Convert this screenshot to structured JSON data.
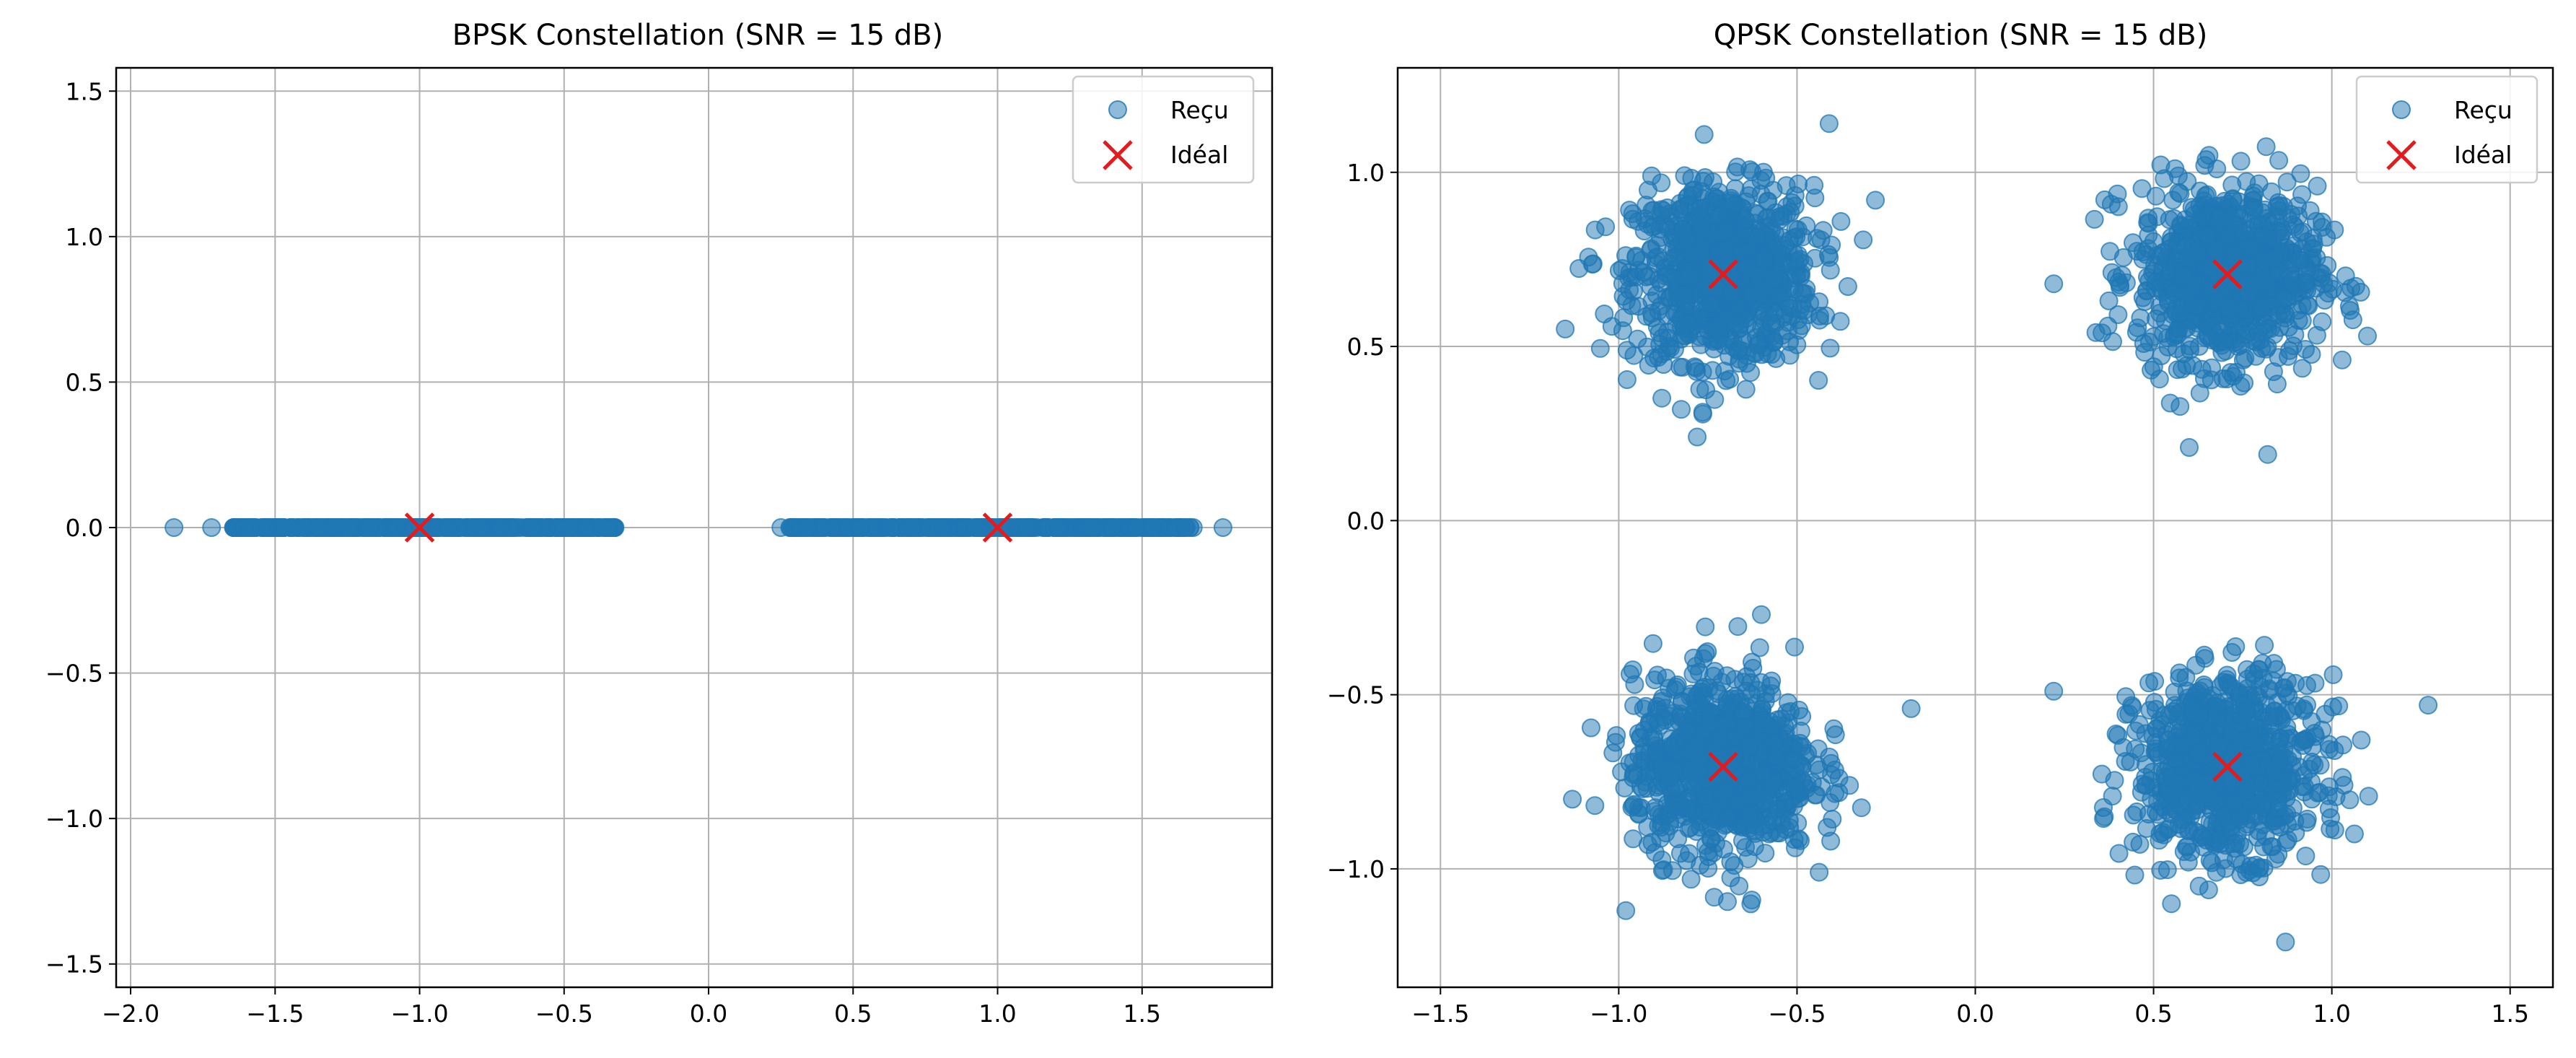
{
  "colors": {
    "received": "#1f77b4",
    "ideal": "#e41a1c",
    "grid": "#b0b0b0",
    "axis": "#000000",
    "legend_border": "#cccccc"
  },
  "chart_data": [
    {
      "type": "scatter",
      "title": "BPSK Constellation (SNR = 15 dB)",
      "xlabel": "",
      "ylabel": "",
      "xlim": [
        -2.05,
        1.95
      ],
      "ylim": [
        -1.58,
        1.58
      ],
      "xticks": [
        -2.0,
        -1.5,
        -1.0,
        -0.5,
        0.0,
        0.5,
        1.0,
        1.5
      ],
      "xtick_labels": [
        "−2.0",
        "−1.5",
        "−1.0",
        "−0.5",
        "0.0",
        "0.5",
        "1.0",
        "1.5"
      ],
      "yticks": [
        -1.5,
        -1.0,
        -0.5,
        0.0,
        0.5,
        1.0,
        1.5
      ],
      "ytick_labels": [
        "−1.5",
        "−1.0",
        "−0.5",
        "0.0",
        "0.5",
        "1.0",
        "1.5"
      ],
      "grid": true,
      "legend": "top-right",
      "series": [
        {
          "name": "Reçu",
          "marker": "circle",
          "clusters": [
            {
              "center": [
                -1.0,
                0.0
              ],
              "x_range": [
                -1.65,
                -0.32
              ],
              "y_spread": 0.0
            },
            {
              "center": [
                1.0,
                0.0
              ],
              "x_range": [
                0.28,
                1.68
              ],
              "y_spread": 0.0
            }
          ],
          "outliers": [
            [
              -1.85,
              0.0
            ],
            [
              -1.72,
              0.0
            ],
            [
              0.25,
              0.0
            ],
            [
              1.78,
              0.0
            ]
          ]
        },
        {
          "name": "Idéal",
          "marker": "x",
          "points": [
            [
              -1.0,
              0.0
            ],
            [
              1.0,
              0.0
            ]
          ]
        }
      ]
    },
    {
      "type": "scatter",
      "title": "QPSK Constellation (SNR = 15 dB)",
      "xlabel": "",
      "ylabel": "",
      "xlim": [
        -1.62,
        1.62
      ],
      "ylim": [
        -1.34,
        1.3
      ],
      "xticks": [
        -1.5,
        -1.0,
        -0.5,
        0.0,
        0.5,
        1.0,
        1.5
      ],
      "xtick_labels": [
        "−1.5",
        "−1.0",
        "−0.5",
        "0.0",
        "0.5",
        "1.0",
        "1.5"
      ],
      "yticks": [
        -1.0,
        -0.5,
        0.0,
        0.5,
        1.0
      ],
      "ytick_labels": [
        "−1.0",
        "−0.5",
        "0.0",
        "0.5",
        "1.0"
      ],
      "grid": true,
      "legend": "top-right",
      "series": [
        {
          "name": "Reçu",
          "marker": "circle",
          "clusters": [
            {
              "center": [
                -0.707,
                0.707
              ],
              "radius": 0.3
            },
            {
              "center": [
                0.707,
                0.707
              ],
              "radius": 0.3
            },
            {
              "center": [
                -0.707,
                -0.707
              ],
              "radius": 0.3
            },
            {
              "center": [
                0.707,
                -0.707
              ],
              "radius": 0.3
            }
          ],
          "outliers": [
            [
              -1.15,
              0.55
            ],
            [
              -0.28,
              0.92
            ],
            [
              -0.41,
              1.14
            ],
            [
              -0.78,
              0.24
            ],
            [
              0.22,
              0.68
            ],
            [
              0.6,
              0.21
            ],
            [
              0.82,
              0.19
            ],
            [
              1.1,
              0.53
            ],
            [
              -0.18,
              -0.54
            ],
            [
              -0.98,
              -1.12
            ],
            [
              -0.6,
              -0.27
            ],
            [
              -1.13,
              -0.8
            ],
            [
              0.22,
              -0.49
            ],
            [
              1.27,
              -0.53
            ],
            [
              0.87,
              -1.21
            ],
            [
              0.55,
              -1.1
            ]
          ]
        },
        {
          "name": "Idéal",
          "marker": "x",
          "points": [
            [
              -0.707,
              0.707
            ],
            [
              0.707,
              0.707
            ],
            [
              -0.707,
              -0.707
            ],
            [
              0.707,
              -0.707
            ]
          ]
        }
      ]
    }
  ]
}
